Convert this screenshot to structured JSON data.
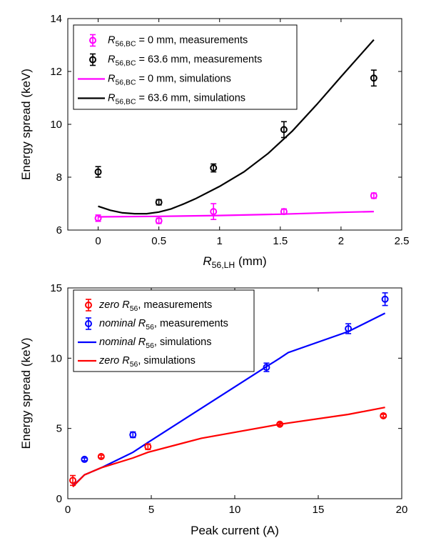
{
  "chart_data": [
    {
      "type": "scatter",
      "xlabel": "R56,LH (mm)",
      "xlabel_main": "R",
      "xlabel_sub": "56,LH",
      "xlabel_unit": "(mm)",
      "ylabel": "Energy spread (keV)",
      "xlim": [
        -0.25,
        2.5
      ],
      "ylim": [
        6,
        14
      ],
      "xticks": [
        0,
        0.5,
        1,
        1.5,
        2,
        2.5
      ],
      "xtick_labels": [
        "0",
        "0.5",
        "1",
        "1.5",
        "2",
        "2.5"
      ],
      "yticks": [
        6,
        8,
        10,
        12,
        14
      ],
      "ytick_labels": [
        "6",
        "8",
        "10",
        "12",
        "14"
      ],
      "legend_position": "top-left",
      "series": [
        {
          "name": "R56,BC = 0 mm, measurements",
          "label_main": "R",
          "label_sub": "56,BC",
          "label_rest": " = 0 mm, measurements",
          "kind": "errorbar",
          "color": "#ff00ff",
          "x": [
            0,
            0.5,
            0.95,
            1.53,
            2.27
          ],
          "y": [
            6.45,
            6.35,
            6.7,
            6.7,
            7.3
          ],
          "err": [
            0.12,
            0.1,
            0.3,
            0.1,
            0.1
          ]
        },
        {
          "name": "R56,BC = 63.6 mm, measurements",
          "label_main": "R",
          "label_sub": "56,BC",
          "label_rest": " = 63.6 mm, measurements",
          "kind": "errorbar",
          "color": "#000000",
          "x": [
            0,
            0.5,
            0.95,
            1.53,
            2.27
          ],
          "y": [
            8.2,
            7.05,
            8.35,
            9.8,
            11.75
          ],
          "err": [
            0.2,
            0.1,
            0.15,
            0.3,
            0.3
          ]
        },
        {
          "name": "R56,BC = 0 mm, simulations",
          "label_main": "R",
          "label_sub": "56,BC",
          "label_rest": " = 0 mm, simulations",
          "kind": "line",
          "color": "#ff00ff",
          "x": [
            0,
            0.5,
            1,
            1.5,
            2,
            2.27
          ],
          "y": [
            6.5,
            6.52,
            6.55,
            6.6,
            6.67,
            6.7
          ]
        },
        {
          "name": "R56,BC = 63.6 mm, simulations",
          "label_main": "R",
          "label_sub": "56,BC",
          "label_rest": " = 63.6 mm, simulations",
          "kind": "line",
          "color": "#000000",
          "x": [
            0,
            0.1,
            0.2,
            0.3,
            0.4,
            0.5,
            0.6,
            0.7,
            0.8,
            1.0,
            1.2,
            1.4,
            1.6,
            1.8,
            2.0,
            2.27
          ],
          "y": [
            6.9,
            6.75,
            6.65,
            6.62,
            6.62,
            6.68,
            6.8,
            6.98,
            7.18,
            7.65,
            8.2,
            8.9,
            9.75,
            10.75,
            11.8,
            13.2
          ]
        }
      ]
    },
    {
      "type": "scatter",
      "xlabel": "Peak current (A)",
      "ylabel": "Energy spread (keV)",
      "xlim": [
        0,
        20
      ],
      "ylim": [
        0,
        15
      ],
      "xticks": [
        0,
        5,
        10,
        15,
        20
      ],
      "xtick_labels": [
        "0",
        "5",
        "10",
        "15",
        "20"
      ],
      "yticks": [
        0,
        5,
        10,
        15
      ],
      "ytick_labels": [
        "0",
        "5",
        "10",
        "15"
      ],
      "legend_position": "top-left",
      "series": [
        {
          "name": "zero R56, measurements",
          "label_main": "zero R",
          "label_sub": "56",
          "label_rest": ", measurements",
          "kind": "errorbar",
          "color": "#ff0000",
          "x": [
            0.3,
            2.0,
            4.8,
            12.7,
            18.9
          ],
          "y": [
            1.3,
            3.0,
            3.7,
            5.3,
            5.9
          ],
          "err": [
            0.35,
            0.1,
            0.2,
            0.1,
            0.1
          ]
        },
        {
          "name": "nominal R56, measurements",
          "label_main": "nominal R",
          "label_sub": "56",
          "label_rest": ", measurements",
          "kind": "errorbar",
          "color": "#0000ff",
          "x": [
            1.0,
            3.9,
            11.9,
            16.8,
            19.0
          ],
          "y": [
            2.8,
            4.55,
            9.35,
            12.1,
            14.2
          ],
          "err": [
            0.1,
            0.2,
            0.3,
            0.35,
            0.45
          ]
        },
        {
          "name": "nominal R56, simulations",
          "label_main": "nominal R",
          "label_sub": "56",
          "label_rest": ", simulations",
          "kind": "line",
          "color": "#0000ff",
          "x": [
            0.3,
            1.0,
            2.0,
            3.9,
            4.8,
            11.9,
            12.7,
            13.2,
            16.8,
            19.0
          ],
          "y": [
            0.9,
            1.7,
            2.2,
            3.3,
            4.0,
            9.4,
            10.0,
            10.4,
            11.9,
            13.2
          ]
        },
        {
          "name": "zero R56, simulations",
          "label_main": "zero R",
          "label_sub": "56",
          "label_rest": ", simulations",
          "kind": "line",
          "color": "#ff0000",
          "x": [
            0.3,
            1.0,
            2.0,
            3.9,
            4.8,
            8.0,
            12.7,
            16.8,
            19.0
          ],
          "y": [
            0.85,
            1.7,
            2.2,
            2.9,
            3.3,
            4.3,
            5.3,
            6.0,
            6.5
          ]
        }
      ]
    }
  ]
}
